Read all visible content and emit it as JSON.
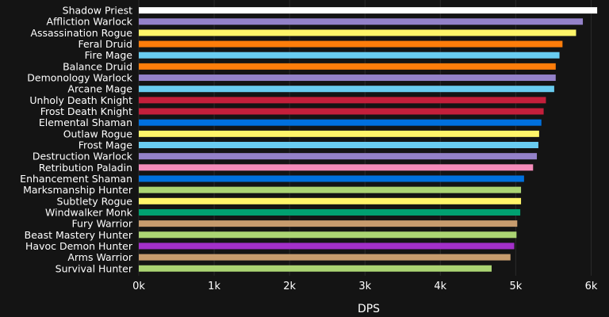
{
  "chart_data": {
    "type": "bar",
    "orientation": "horizontal",
    "title": "",
    "xlabel": "DPS",
    "ylabel": "",
    "xlim": [
      0,
      6100
    ],
    "grid": true,
    "xticks": [
      {
        "value": 0,
        "label": "0k"
      },
      {
        "value": 1000,
        "label": "1k"
      },
      {
        "value": 2000,
        "label": "2k"
      },
      {
        "value": 3000,
        "label": "3k"
      },
      {
        "value": 4000,
        "label": "4k"
      },
      {
        "value": 5000,
        "label": "5k"
      },
      {
        "value": 6000,
        "label": "6k"
      }
    ],
    "bars": [
      {
        "category": "Shadow Priest",
        "value": 6080,
        "color": "#ffffff"
      },
      {
        "category": "Affliction Warlock",
        "value": 5890,
        "color": "#9482c9"
      },
      {
        "category": "Assassination Rogue",
        "value": 5800,
        "color": "#fff569"
      },
      {
        "category": "Feral Druid",
        "value": 5620,
        "color": "#ff7d0a"
      },
      {
        "category": "Fire Mage",
        "value": 5580,
        "color": "#69ccf0"
      },
      {
        "category": "Balance Druid",
        "value": 5530,
        "color": "#ff7d0a"
      },
      {
        "category": "Demonology Warlock",
        "value": 5530,
        "color": "#9482c9"
      },
      {
        "category": "Arcane Mage",
        "value": 5510,
        "color": "#69ccf0"
      },
      {
        "category": "Unholy Death Knight",
        "value": 5400,
        "color": "#c41f3b"
      },
      {
        "category": "Frost Death Knight",
        "value": 5370,
        "color": "#c41f3b"
      },
      {
        "category": "Elemental Shaman",
        "value": 5340,
        "color": "#0070de"
      },
      {
        "category": "Outlaw Rogue",
        "value": 5310,
        "color": "#fff569"
      },
      {
        "category": "Frost Mage",
        "value": 5300,
        "color": "#69ccf0"
      },
      {
        "category": "Destruction Warlock",
        "value": 5280,
        "color": "#9482c9"
      },
      {
        "category": "Retribution Paladin",
        "value": 5230,
        "color": "#f58cba"
      },
      {
        "category": "Enhancement Shaman",
        "value": 5110,
        "color": "#0070de"
      },
      {
        "category": "Marksmanship Hunter",
        "value": 5070,
        "color": "#abd473"
      },
      {
        "category": "Subtlety Rogue",
        "value": 5070,
        "color": "#fff569"
      },
      {
        "category": "Windwalker Monk",
        "value": 5060,
        "color": "#00a070"
      },
      {
        "category": "Fury Warrior",
        "value": 5020,
        "color": "#c79c6e"
      },
      {
        "category": "Beast Mastery Hunter",
        "value": 5010,
        "color": "#abd473"
      },
      {
        "category": "Havoc Demon Hunter",
        "value": 4980,
        "color": "#a330c9"
      },
      {
        "category": "Arms Warrior",
        "value": 4930,
        "color": "#c79c6e"
      },
      {
        "category": "Survival Hunter",
        "value": 4680,
        "color": "#abd473"
      }
    ]
  }
}
